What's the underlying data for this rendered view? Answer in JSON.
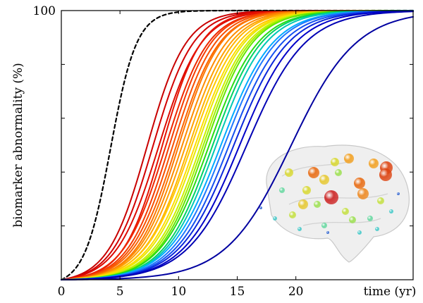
{
  "chart_data": {
    "type": "line",
    "title": "",
    "xlabel": "time (yr)",
    "ylabel": "biomarker abnormality (%)",
    "xlim": [
      0,
      30
    ],
    "ylim": [
      0,
      100
    ],
    "x_tick_labels": [
      "0",
      "5",
      "10",
      "15",
      "20"
    ],
    "x_ticks": [
      0,
      5,
      10,
      15,
      20
    ],
    "y_tick_labels": [
      "100"
    ],
    "y_ticks": [
      0,
      20,
      40,
      60,
      80,
      100
    ],
    "model": "sigmoid",
    "series": [
      {
        "style": "dashed",
        "color": "#000000",
        "midpoint": 4.2,
        "rate": 0.9
      },
      {
        "color": "#c80000",
        "midpoint": 7.3,
        "rate": 0.6
      },
      {
        "color": "#d20000",
        "midpoint": 7.8,
        "rate": 0.58
      },
      {
        "color": "#dc0a00",
        "midpoint": 8.3,
        "rate": 0.55
      },
      {
        "color": "#e61400",
        "midpoint": 8.6,
        "rate": 0.6
      },
      {
        "color": "#ee2800",
        "midpoint": 8.9,
        "rate": 0.55
      },
      {
        "color": "#f43c00",
        "midpoint": 9.2,
        "rate": 0.56
      },
      {
        "color": "#f85000",
        "midpoint": 9.5,
        "rate": 0.55
      },
      {
        "color": "#fa6400",
        "midpoint": 9.8,
        "rate": 0.54
      },
      {
        "color": "#fc7800",
        "midpoint": 10.0,
        "rate": 0.55
      },
      {
        "color": "#fd8c00",
        "midpoint": 10.3,
        "rate": 0.53
      },
      {
        "color": "#ffa000",
        "midpoint": 10.6,
        "rate": 0.52
      },
      {
        "color": "#ffb400",
        "midpoint": 10.9,
        "rate": 0.52
      },
      {
        "color": "#ffc800",
        "midpoint": 11.1,
        "rate": 0.5
      },
      {
        "color": "#ffdc00",
        "midpoint": 11.4,
        "rate": 0.5
      },
      {
        "color": "#e8e800",
        "midpoint": 11.6,
        "rate": 0.5
      },
      {
        "color": "#c8f000",
        "midpoint": 11.9,
        "rate": 0.5
      },
      {
        "color": "#a0f000",
        "midpoint": 12.1,
        "rate": 0.5
      },
      {
        "color": "#64e600",
        "midpoint": 12.3,
        "rate": 0.5
      },
      {
        "color": "#28dc14",
        "midpoint": 12.6,
        "rate": 0.48
      },
      {
        "color": "#00d264",
        "midpoint": 12.9,
        "rate": 0.48
      },
      {
        "color": "#00c8b4",
        "midpoint": 13.2,
        "rate": 0.47
      },
      {
        "color": "#00aaff",
        "midpoint": 13.6,
        "rate": 0.45
      },
      {
        "color": "#1e78ff",
        "midpoint": 13.9,
        "rate": 0.45
      },
      {
        "color": "#1450f0",
        "midpoint": 14.3,
        "rate": 0.44
      },
      {
        "color": "#0a28dc",
        "midpoint": 14.7,
        "rate": 0.43
      },
      {
        "color": "#0000c8",
        "midpoint": 15.2,
        "rate": 0.42
      },
      {
        "color": "#0000b4",
        "midpoint": 15.8,
        "rate": 0.4
      },
      {
        "color": "#0000a0",
        "midpoint": 19.6,
        "rate": 0.36
      }
    ],
    "inset": {
      "description": "brain",
      "nodes": [
        {
          "color": "#cc2222",
          "size": 10
        },
        {
          "color": "#dd4411",
          "size": 9
        },
        {
          "color": "#e86a10",
          "size": 8
        },
        {
          "color": "#ee8820",
          "size": 8
        },
        {
          "color": "#f2a020",
          "size": 7
        },
        {
          "color": "#e6c830",
          "size": 7
        },
        {
          "color": "#d8d830",
          "size": 6
        },
        {
          "color": "#c4e040",
          "size": 5
        },
        {
          "color": "#9ce050",
          "size": 5
        },
        {
          "color": "#66d8a0",
          "size": 4
        },
        {
          "color": "#40c8c8",
          "size": 3
        },
        {
          "color": "#2a60d0",
          "size": 2
        }
      ]
    }
  }
}
